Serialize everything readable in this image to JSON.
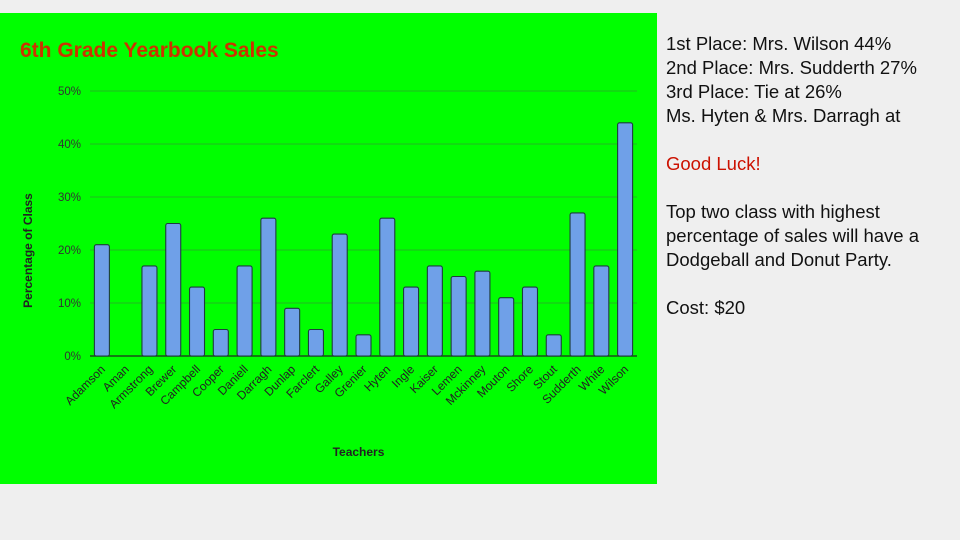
{
  "chart_data": {
    "type": "bar",
    "title": "6th Grade Yearbook Sales",
    "xlabel": "Teachers",
    "ylabel": "Percentage of Class",
    "ylim": [
      0,
      50
    ],
    "yticks": [
      0,
      10,
      20,
      30,
      40,
      50
    ],
    "ytick_labels": [
      "0%",
      "10%",
      "20%",
      "30%",
      "40%",
      "50%"
    ],
    "grid": true,
    "bar_color": "#6fa0e8",
    "background_color": "#00ff00",
    "title_color": "#cc3300",
    "categories": [
      "Adamson",
      "Aman",
      "Armstrong",
      "Brewer",
      "Campbell",
      "Cooper",
      "Daniell",
      "Darragh",
      "Dunlap",
      "Farclert",
      "Galley",
      "Grenier",
      "Hyten",
      "Ingle",
      "Kaiser",
      "Lemen",
      "Mckinney",
      "Mouton",
      "Shore",
      "Stout",
      "Sudderth",
      "White",
      "Wilson"
    ],
    "values": [
      21,
      0,
      17,
      25,
      13,
      5,
      17,
      26,
      9,
      5,
      23,
      4,
      26,
      13,
      17,
      15,
      16,
      11,
      13,
      4,
      27,
      17,
      44
    ]
  },
  "side": {
    "line1": "1st Place: Mrs. Wilson 44%",
    "line2": "2nd Place: Mrs. Sudderth 27%",
    "line3": "3rd Place: Tie at 26%",
    "line4": "Ms. Hyten & Mrs. Darragh at",
    "good_luck": "Good Luck!",
    "party_1": "Top two class with highest",
    "party_2": "percentage of sales will have a",
    "party_3": "Dodgeball and Donut Party.",
    "cost": "Cost: $20"
  }
}
